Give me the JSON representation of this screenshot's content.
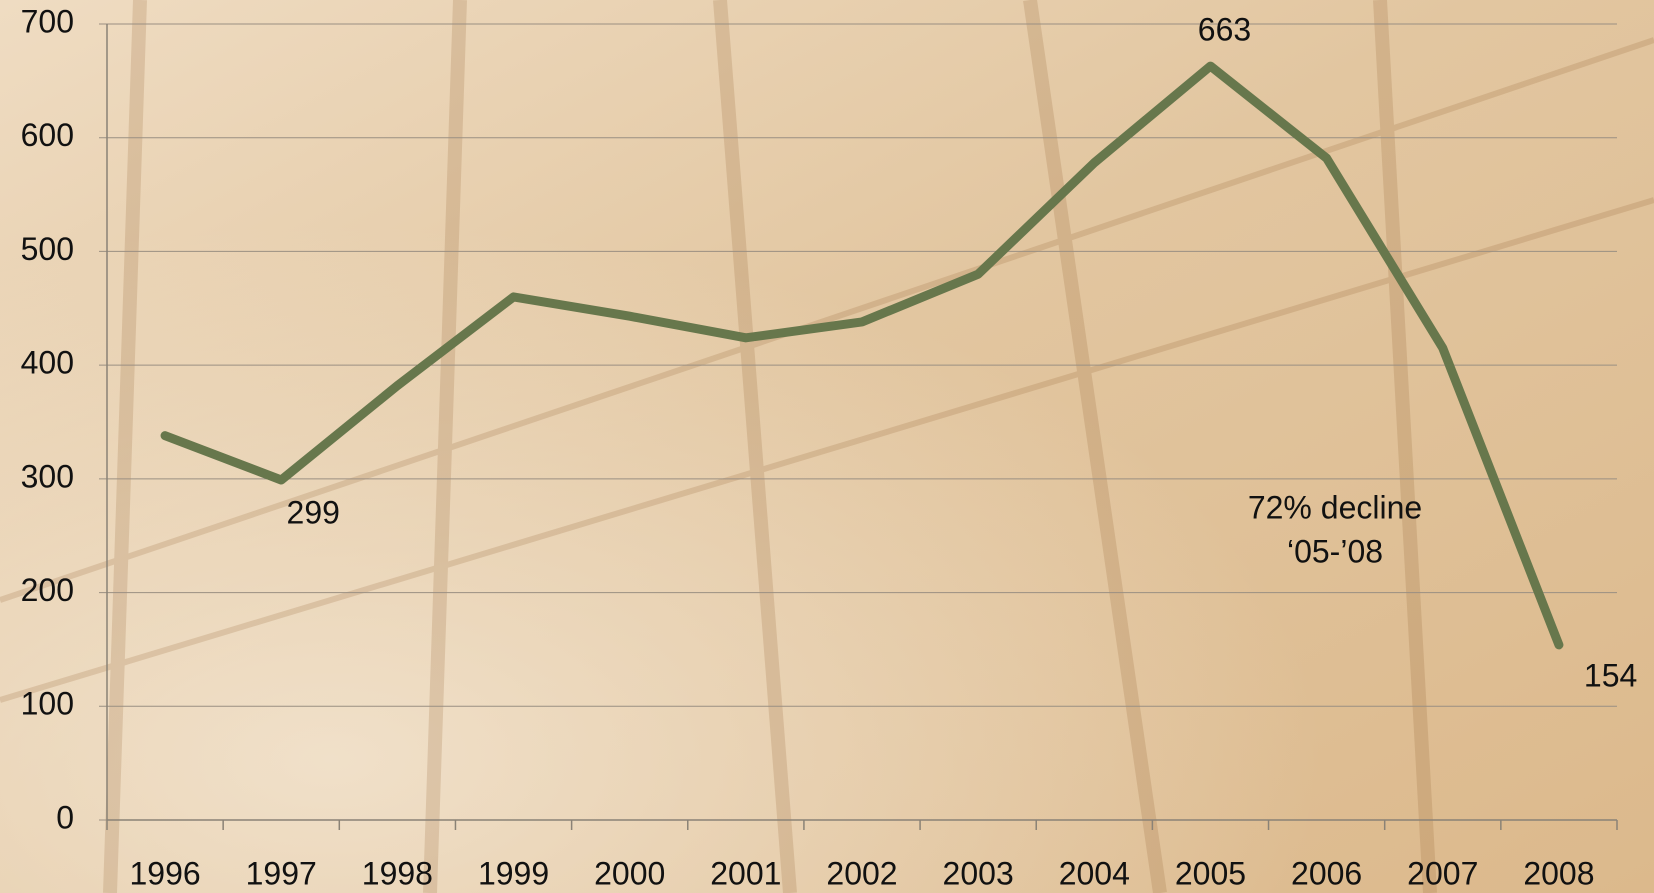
{
  "chart_data": {
    "type": "line",
    "categories": [
      "1996",
      "1997",
      "1998",
      "1999",
      "2000",
      "2001",
      "2002",
      "2003",
      "2004",
      "2005",
      "2006",
      "2007",
      "2008"
    ],
    "series": [
      {
        "color": "#67774c",
        "values": [
          338,
          299,
          382,
          460,
          443,
          424,
          438,
          480,
          578,
          663,
          582,
          415,
          154
        ]
      }
    ],
    "labeled_points": [
      1,
      9,
      12
    ],
    "annotation": [
      "72% decline",
      "‘05-’08"
    ],
    "ylim": [
      0,
      700
    ],
    "yticks": [
      0,
      100,
      200,
      300,
      400,
      500,
      600,
      700
    ],
    "grid": true
  }
}
